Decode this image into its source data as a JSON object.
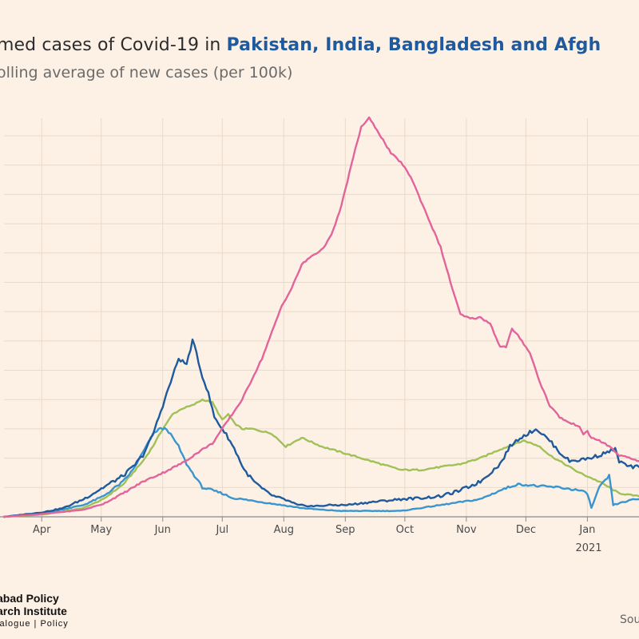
{
  "header": {
    "title_plain": "med cases of Covid-19 in ",
    "title_highlight": "Pakistan, India, Bangladesh and Afgh",
    "subtitle": "olling average of new cases (per 100k)"
  },
  "footer": {
    "logo_line1": "abad Policy",
    "logo_line2": "arch Institute",
    "logo_line3": "ialogue | Policy",
    "source": "Sou"
  },
  "colors": {
    "background": "#fdf1e6",
    "grid": "#ead9c9",
    "axis": "#8a8a8a",
    "india": "#e2649a",
    "pakistan": "#1e5a9c",
    "afghanistan": "#9fc156",
    "bangladesh": "#3a95cf"
  },
  "chart_data": {
    "type": "line",
    "title": "",
    "xlabel": "",
    "ylabel": "",
    "x_ticks": [
      {
        "label": "Apr",
        "day": 19
      },
      {
        "label": "May",
        "day": 49
      },
      {
        "label": "Jun",
        "day": 80
      },
      {
        "label": "Jul",
        "day": 110
      },
      {
        "label": "Aug",
        "day": 141
      },
      {
        "label": "Sep",
        "day": 172
      },
      {
        "label": "Oct",
        "day": 202
      },
      {
        "label": "Nov",
        "day": 233
      },
      {
        "label": "Dec",
        "day": 263
      },
      {
        "label": "Jan",
        "day": 294
      }
    ],
    "year_label": "2021",
    "x_range": [
      0,
      320
    ],
    "y_range": [
      0,
      6.8
    ],
    "grid": true,
    "series": [
      {
        "key": "india",
        "points": [
          [
            0,
            0
          ],
          [
            20,
            0.05
          ],
          [
            40,
            0.12
          ],
          [
            50,
            0.22
          ],
          [
            60,
            0.4
          ],
          [
            70,
            0.6
          ],
          [
            80,
            0.75
          ],
          [
            90,
            0.92
          ],
          [
            100,
            1.15
          ],
          [
            105,
            1.25
          ],
          [
            110,
            1.5
          ],
          [
            120,
            2.0
          ],
          [
            130,
            2.7
          ],
          [
            140,
            3.6
          ],
          [
            145,
            3.9
          ],
          [
            150,
            4.3
          ],
          [
            155,
            4.45
          ],
          [
            160,
            4.55
          ],
          [
            165,
            4.8
          ],
          [
            170,
            5.3
          ],
          [
            175,
            6.0
          ],
          [
            180,
            6.65
          ],
          [
            184,
            6.8
          ],
          [
            188,
            6.6
          ],
          [
            195,
            6.2
          ],
          [
            200,
            6.05
          ],
          [
            205,
            5.8
          ],
          [
            210,
            5.4
          ],
          [
            220,
            4.6
          ],
          [
            225,
            4.0
          ],
          [
            230,
            3.45
          ],
          [
            235,
            3.38
          ],
          [
            240,
            3.4
          ],
          [
            245,
            3.3
          ],
          [
            250,
            2.9
          ],
          [
            253,
            2.9
          ],
          [
            256,
            3.2
          ],
          [
            260,
            3.05
          ],
          [
            265,
            2.8
          ],
          [
            270,
            2.3
          ],
          [
            275,
            1.9
          ],
          [
            280,
            1.7
          ],
          [
            285,
            1.6
          ],
          [
            290,
            1.55
          ],
          [
            292,
            1.4
          ],
          [
            294,
            1.45
          ],
          [
            296,
            1.35
          ],
          [
            300,
            1.3
          ],
          [
            305,
            1.2
          ],
          [
            310,
            1.05
          ],
          [
            315,
            1.0
          ],
          [
            320,
            0.95
          ]
        ]
      },
      {
        "key": "pakistan",
        "points": [
          [
            0,
            0
          ],
          [
            20,
            0.08
          ],
          [
            30,
            0.15
          ],
          [
            40,
            0.3
          ],
          [
            50,
            0.5
          ],
          [
            60,
            0.7
          ],
          [
            65,
            0.85
          ],
          [
            70,
            1.05
          ],
          [
            75,
            1.4
          ],
          [
            80,
            1.9
          ],
          [
            85,
            2.4
          ],
          [
            88,
            2.7
          ],
          [
            92,
            2.6
          ],
          [
            95,
            3.0
          ],
          [
            97,
            2.8
          ],
          [
            99,
            2.5
          ],
          [
            101,
            2.3
          ],
          [
            103,
            2.1
          ],
          [
            106,
            1.7
          ],
          [
            110,
            1.5
          ],
          [
            113,
            1.35
          ],
          [
            117,
            1.1
          ],
          [
            121,
            0.8
          ],
          [
            126,
            0.6
          ],
          [
            131,
            0.45
          ],
          [
            136,
            0.35
          ],
          [
            141,
            0.3
          ],
          [
            148,
            0.2
          ],
          [
            156,
            0.18
          ],
          [
            165,
            0.2
          ],
          [
            172,
            0.2
          ],
          [
            185,
            0.25
          ],
          [
            200,
            0.3
          ],
          [
            210,
            0.32
          ],
          [
            220,
            0.35
          ],
          [
            230,
            0.45
          ],
          [
            240,
            0.6
          ],
          [
            250,
            0.9
          ],
          [
            255,
            1.2
          ],
          [
            260,
            1.35
          ],
          [
            263,
            1.4
          ],
          [
            268,
            1.5
          ],
          [
            270,
            1.45
          ],
          [
            275,
            1.3
          ],
          [
            280,
            1.1
          ],
          [
            285,
            0.95
          ],
          [
            290,
            0.97
          ],
          [
            295,
            1.0
          ],
          [
            300,
            1.05
          ],
          [
            305,
            1.12
          ],
          [
            308,
            1.15
          ],
          [
            310,
            0.95
          ],
          [
            315,
            0.85
          ],
          [
            320,
            0.85
          ]
        ]
      },
      {
        "key": "afghanistan",
        "points": [
          [
            0,
            0
          ],
          [
            20,
            0.04
          ],
          [
            40,
            0.15
          ],
          [
            50,
            0.3
          ],
          [
            60,
            0.55
          ],
          [
            65,
            0.75
          ],
          [
            70,
            0.95
          ],
          [
            75,
            1.2
          ],
          [
            80,
            1.5
          ],
          [
            85,
            1.75
          ],
          [
            90,
            1.85
          ],
          [
            95,
            1.9
          ],
          [
            100,
            2.0
          ],
          [
            105,
            1.95
          ],
          [
            110,
            1.65
          ],
          [
            113,
            1.75
          ],
          [
            116,
            1.6
          ],
          [
            120,
            1.5
          ],
          [
            125,
            1.5
          ],
          [
            135,
            1.42
          ],
          [
            142,
            1.2
          ],
          [
            150,
            1.35
          ],
          [
            160,
            1.2
          ],
          [
            170,
            1.1
          ],
          [
            180,
            1.0
          ],
          [
            190,
            0.9
          ],
          [
            200,
            0.8
          ],
          [
            210,
            0.8
          ],
          [
            220,
            0.85
          ],
          [
            230,
            0.9
          ],
          [
            240,
            1.0
          ],
          [
            250,
            1.15
          ],
          [
            258,
            1.25
          ],
          [
            262,
            1.3
          ],
          [
            266,
            1.25
          ],
          [
            270,
            1.2
          ],
          [
            275,
            1.05
          ],
          [
            280,
            0.95
          ],
          [
            290,
            0.75
          ],
          [
            300,
            0.6
          ],
          [
            305,
            0.5
          ],
          [
            310,
            0.4
          ],
          [
            320,
            0.35
          ]
        ]
      },
      {
        "key": "bangladesh",
        "points": [
          [
            0,
            0
          ],
          [
            20,
            0.06
          ],
          [
            40,
            0.2
          ],
          [
            50,
            0.35
          ],
          [
            60,
            0.6
          ],
          [
            65,
            0.8
          ],
          [
            70,
            1.1
          ],
          [
            75,
            1.4
          ],
          [
            78,
            1.5
          ],
          [
            82,
            1.5
          ],
          [
            85,
            1.35
          ],
          [
            88,
            1.2
          ],
          [
            92,
            0.9
          ],
          [
            96,
            0.7
          ],
          [
            100,
            0.5
          ],
          [
            105,
            0.45
          ],
          [
            110,
            0.4
          ],
          [
            115,
            0.32
          ],
          [
            120,
            0.3
          ],
          [
            130,
            0.25
          ],
          [
            140,
            0.2
          ],
          [
            150,
            0.15
          ],
          [
            160,
            0.12
          ],
          [
            170,
            0.1
          ],
          [
            180,
            0.1
          ],
          [
            190,
            0.1
          ],
          [
            200,
            0.1
          ],
          [
            210,
            0.15
          ],
          [
            220,
            0.2
          ],
          [
            230,
            0.25
          ],
          [
            240,
            0.3
          ],
          [
            250,
            0.45
          ],
          [
            258,
            0.55
          ],
          [
            262,
            0.55
          ],
          [
            270,
            0.52
          ],
          [
            280,
            0.5
          ],
          [
            290,
            0.45
          ],
          [
            294,
            0.4
          ],
          [
            296,
            0.15
          ],
          [
            300,
            0.5
          ],
          [
            305,
            0.7
          ],
          [
            307,
            0.2
          ],
          [
            312,
            0.25
          ],
          [
            318,
            0.3
          ],
          [
            320,
            0.3
          ]
        ]
      }
    ]
  }
}
